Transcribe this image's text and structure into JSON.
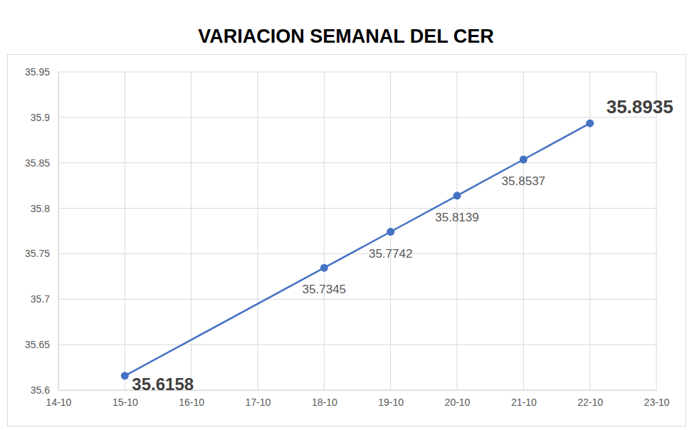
{
  "chart_data": {
    "type": "line",
    "title": "VARIACION SEMANAL DEL CER",
    "x": [
      15,
      18,
      19,
      20,
      21,
      22
    ],
    "values": [
      35.6158,
      35.7345,
      35.7742,
      35.8139,
      35.8537,
      35.8935
    ],
    "color": "#4472c4",
    "marker": "circle",
    "xlim": [
      14,
      23
    ],
    "xticks": [
      {
        "value": 14,
        "label": "14-10"
      },
      {
        "value": 15,
        "label": "15-10"
      },
      {
        "value": 16,
        "label": "16-10"
      },
      {
        "value": 17,
        "label": "17-10"
      },
      {
        "value": 18,
        "label": "18-10"
      },
      {
        "value": 19,
        "label": "19-10"
      },
      {
        "value": 20,
        "label": "20-10"
      },
      {
        "value": 21,
        "label": "21-10"
      },
      {
        "value": 22,
        "label": "22-10"
      },
      {
        "value": 23,
        "label": "23-10"
      }
    ],
    "ylim": [
      35.6,
      35.95
    ],
    "yticks": [
      35.6,
      35.65,
      35.7,
      35.75,
      35.8,
      35.85,
      35.9,
      35.95
    ],
    "grid": true,
    "data_labels": true
  }
}
